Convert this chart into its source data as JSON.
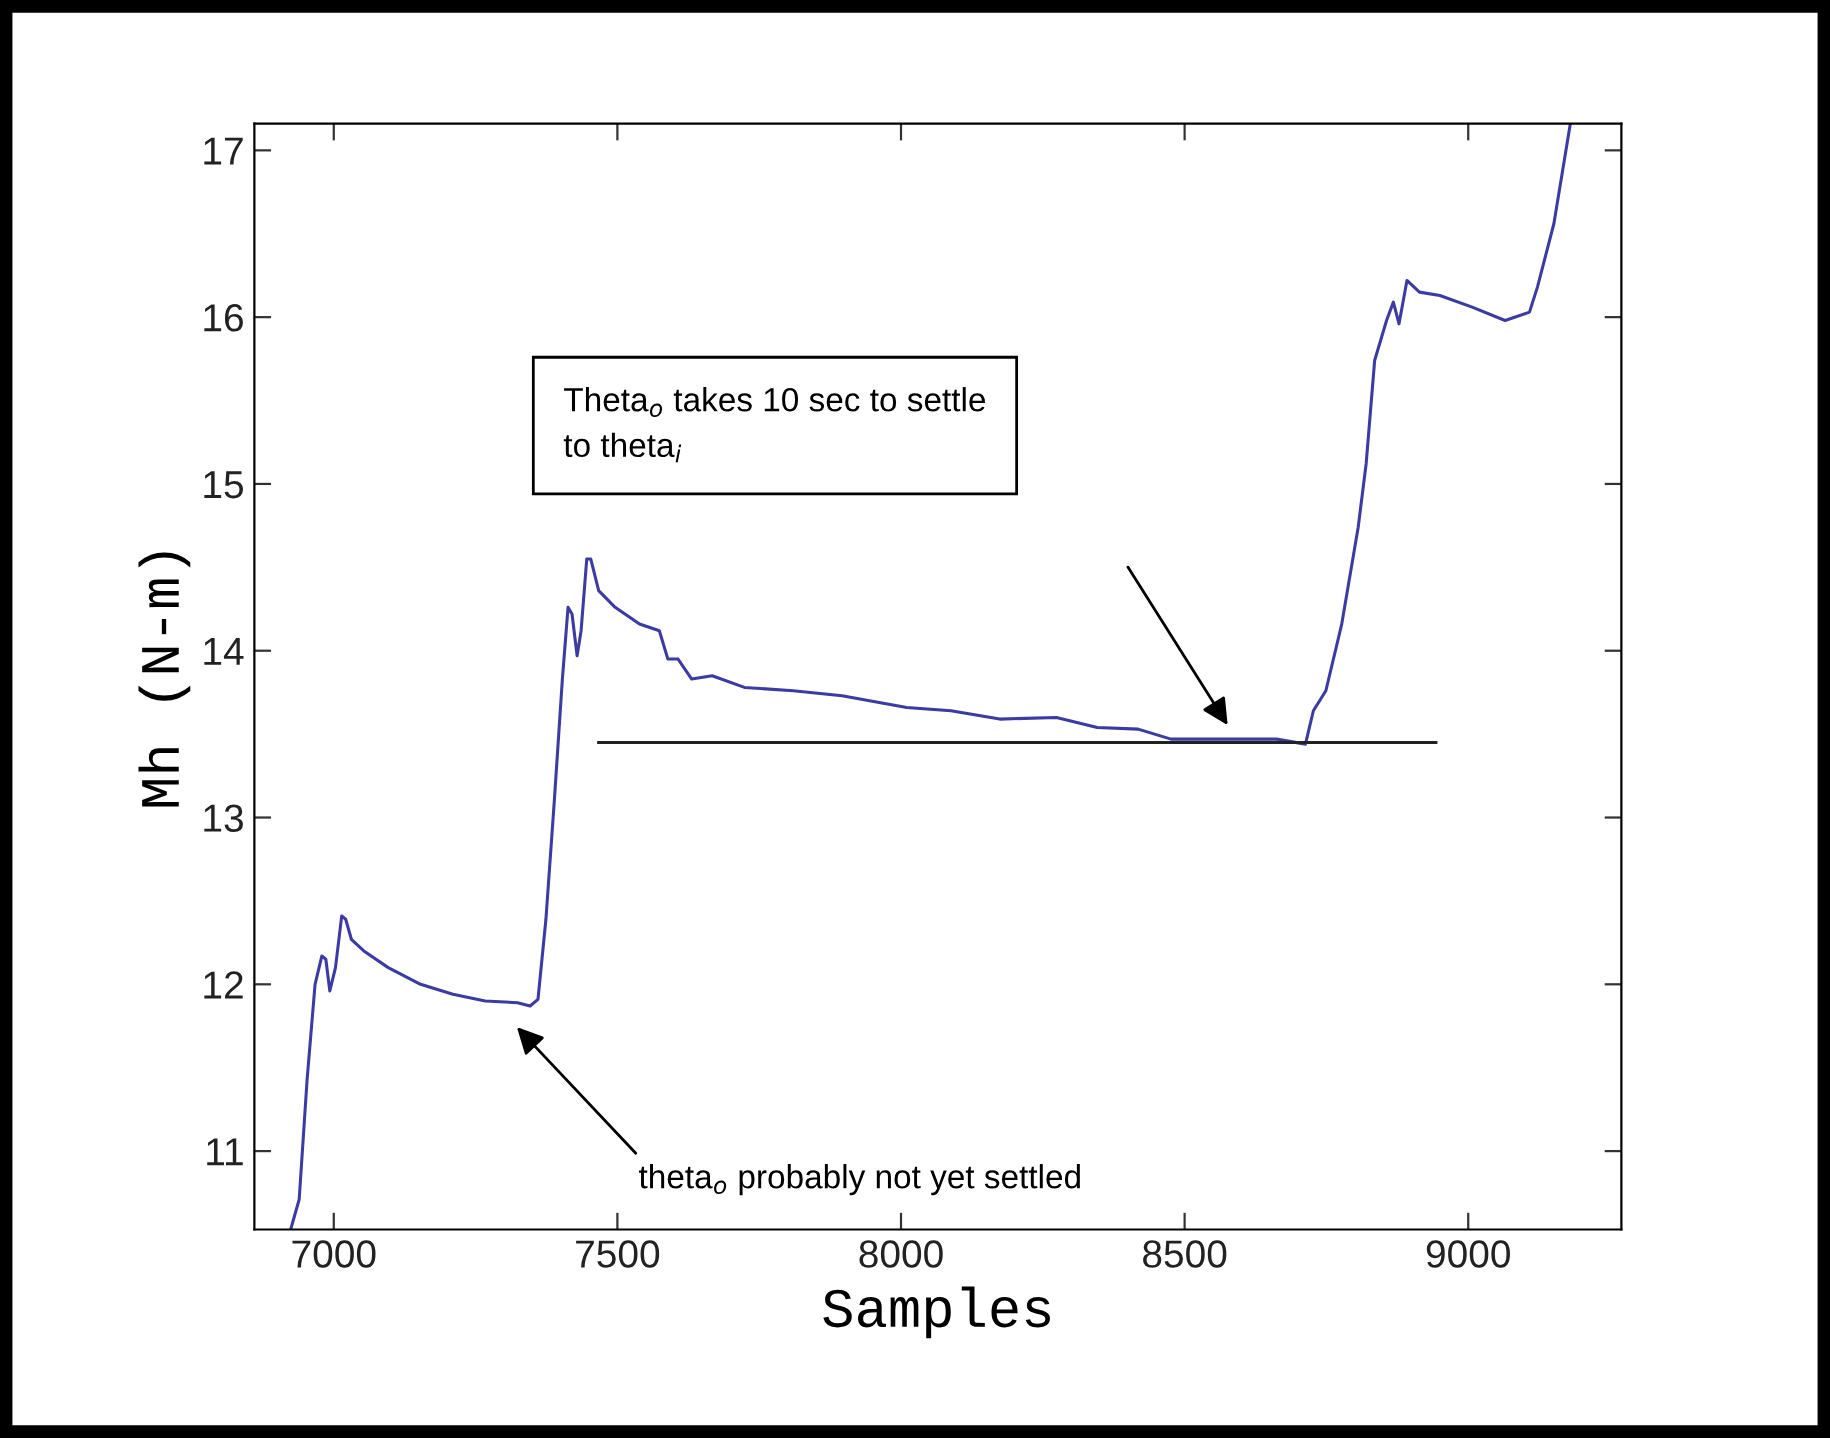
{
  "chart_data": {
    "type": "line",
    "xlabel": "Samples",
    "ylabel": "Mh (N-m)",
    "xlim": [
      6860,
      9270
    ],
    "xticks": [
      7000,
      7500,
      8000,
      8500,
      9000
    ],
    "ylim": [
      10.53,
      17.16
    ],
    "yticks": [
      11,
      12,
      13,
      14,
      15,
      16,
      17
    ],
    "grid": false,
    "marker": "none",
    "line_style": "solid",
    "series": [
      {
        "color": "#3b3ba3",
        "x": [
          6924,
          6939,
          6953,
          6967,
          6979,
          6986,
          6993,
          7003,
          7014,
          7021,
          7031,
          7053,
          7096,
          7153,
          7210,
          7267,
          7324,
          7346,
          7360,
          7374,
          7389,
          7403,
          7413,
          7420,
          7429,
          7436,
          7446,
          7453,
          7467,
          7496,
          7539,
          7574,
          7589,
          7607,
          7631,
          7667,
          7724,
          7810,
          7896,
          8010,
          8088,
          8174,
          8274,
          8346,
          8418,
          8476,
          8562,
          8662,
          8713,
          8727,
          8749,
          8777,
          8806,
          8820,
          8835,
          8856,
          8868,
          8878,
          8892,
          8914,
          8950,
          9007,
          9065,
          9108,
          9122,
          9151,
          9180
        ],
        "values": [
          10.53,
          10.71,
          11.43,
          12.0,
          12.17,
          12.15,
          11.96,
          12.1,
          12.41,
          12.39,
          12.27,
          12.2,
          12.1,
          12.0,
          11.94,
          11.9,
          11.89,
          11.87,
          11.91,
          12.39,
          13.11,
          13.83,
          14.26,
          14.22,
          13.97,
          14.12,
          14.55,
          14.55,
          14.36,
          14.26,
          14.16,
          14.12,
          13.95,
          13.95,
          13.83,
          13.85,
          13.78,
          13.76,
          13.73,
          13.66,
          13.64,
          13.59,
          13.6,
          13.54,
          13.53,
          13.47,
          13.47,
          13.47,
          13.44,
          13.64,
          13.76,
          14.16,
          14.74,
          15.12,
          15.74,
          15.98,
          16.09,
          15.96,
          16.22,
          16.15,
          16.13,
          16.06,
          15.98,
          16.03,
          16.18,
          16.56,
          17.16
        ]
      },
      {
        "color": "#222222",
        "x": [
          7467,
          8943
        ],
        "values": [
          13.45,
          13.45
        ]
      }
    ],
    "annotations": [
      "theta$_{o}$ probably not yet settled",
      "Theta$_{o}$ takes 10 sec to settle\nto theta$_{i}$"
    ]
  }
}
